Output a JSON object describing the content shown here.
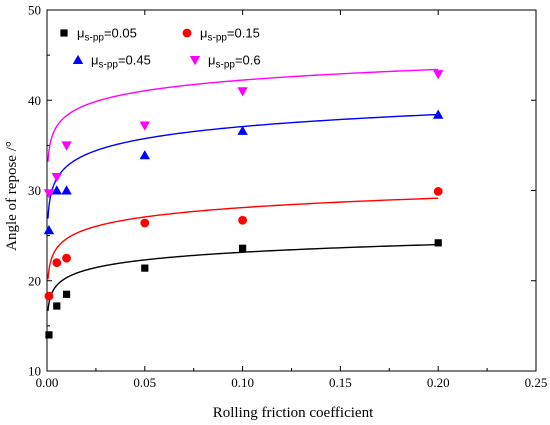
{
  "chart_data": {
    "type": "scatter",
    "xlabel": "Rolling friction coefficient",
    "ylabel": "Angle of repose /°",
    "xlim": [
      0.0,
      0.25
    ],
    "ylim": [
      10,
      50
    ],
    "x_ticks": [
      "0.00",
      "0.05",
      "0.10",
      "0.15",
      "0.20",
      "0.25"
    ],
    "y_ticks": [
      "10",
      "20",
      "30",
      "40",
      "50"
    ],
    "x_tick_values": [
      0.0,
      0.05,
      0.1,
      0.15,
      0.2,
      0.25
    ],
    "y_tick_values": [
      10,
      20,
      30,
      40,
      50
    ],
    "grid": false,
    "legend_position": "top-left",
    "series": [
      {
        "legend_main": "μ",
        "legend_sub": "s-pp",
        "legend_value": "=0.05",
        "marker": "square",
        "color": "#000000",
        "x": [
          0.001,
          0.005,
          0.01,
          0.05,
          0.1,
          0.2
        ],
        "y": [
          14.0,
          17.2,
          18.5,
          21.4,
          23.6,
          24.2
        ],
        "fit": {
          "a": 25.98,
          "b": 1.225
        }
      },
      {
        "legend_main": "μ",
        "legend_sub": "s-pp",
        "legend_value": "=0.15",
        "marker": "circle",
        "color": "#ff0000",
        "x": [
          0.001,
          0.005,
          0.01,
          0.05,
          0.1,
          0.2
        ],
        "y": [
          18.3,
          22.0,
          22.5,
          26.4,
          26.7,
          29.9
        ],
        "fit": {
          "a": 31.56,
          "b": 1.5
        }
      },
      {
        "legend_main": "μ",
        "legend_sub": "s-pp",
        "legend_value": "=0.45",
        "marker": "triangle-up",
        "color": "#0000ff",
        "x": [
          0.001,
          0.005,
          0.01,
          0.05,
          0.1,
          0.2
        ],
        "y": [
          25.6,
          30.0,
          30.0,
          33.9,
          36.6,
          38.4
        ],
        "fit": {
          "a": 41.52,
          "b": 1.925
        }
      },
      {
        "legend_main": "μ",
        "legend_sub": "s-pp",
        "legend_value": "=0.6",
        "marker": "triangle-down",
        "color": "#ff00ff",
        "x": [
          0.001,
          0.005,
          0.01,
          0.05,
          0.1,
          0.2
        ],
        "y": [
          29.7,
          31.5,
          35.0,
          37.2,
          41.0,
          42.9
        ],
        "fit": {
          "a": 46.17,
          "b": 1.71
        }
      }
    ]
  }
}
